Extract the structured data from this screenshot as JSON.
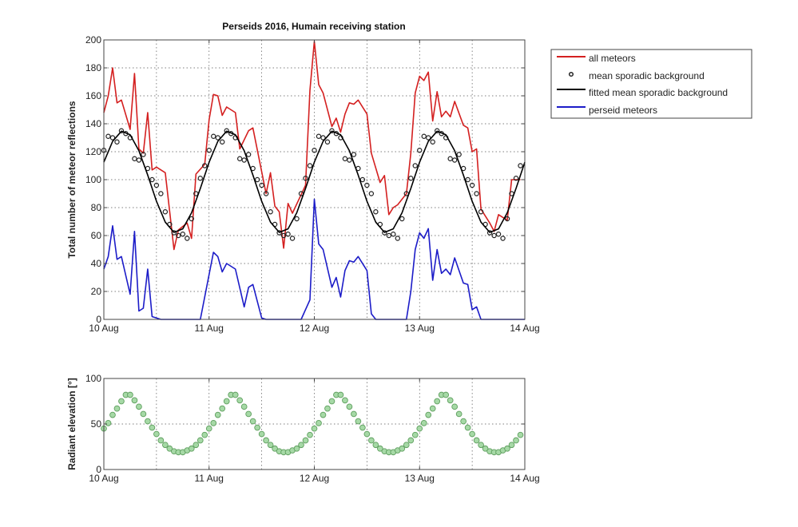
{
  "chart_data": [
    {
      "type": "line",
      "title": "Perseids 2016, Humain receiving station",
      "xlabel": "",
      "ylabel": "Total number of meteor reflections",
      "ylim": [
        0,
        200
      ],
      "xlim": [
        "10 Aug 00:00",
        "14 Aug 00:00"
      ],
      "yticks": [
        "0",
        "20",
        "40",
        "60",
        "80",
        "100",
        "120",
        "140",
        "160",
        "180",
        "200"
      ],
      "xticks": [
        "10 Aug",
        "11 Aug",
        "12 Aug",
        "13 Aug",
        "14 Aug"
      ],
      "grid": true,
      "legend_position": "outside-right",
      "series": [
        {
          "name": "all meteors",
          "style": "line",
          "color": "#d42020",
          "points": [
            [
              "10 Aug 00:00",
              148
            ],
            [
              "10 Aug 01:00",
              160
            ],
            [
              "10 Aug 02:00",
              180
            ],
            [
              "10 Aug 03:00",
              155
            ],
            [
              "10 Aug 04:00",
              157
            ],
            [
              "10 Aug 06:00",
              136
            ],
            [
              "10 Aug 07:00",
              176
            ],
            [
              "10 Aug 08:00",
              122
            ],
            [
              "10 Aug 09:00",
              119
            ],
            [
              "10 Aug 10:00",
              148
            ],
            [
              "10 Aug 11:00",
              107
            ],
            [
              "10 Aug 12:00",
              109
            ],
            [
              "10 Aug 14:00",
              105
            ],
            [
              "10 Aug 16:00",
              50
            ],
            [
              "10 Aug 17:00",
              64
            ],
            [
              "10 Aug 19:00",
              69
            ],
            [
              "10 Aug 20:00",
              58
            ],
            [
              "10 Aug 21:00",
              104
            ],
            [
              "10 Aug 23:00",
              111
            ],
            [
              "11 Aug 00:00",
              143
            ],
            [
              "11 Aug 01:00",
              161
            ],
            [
              "11 Aug 02:00",
              160
            ],
            [
              "11 Aug 03:00",
              146
            ],
            [
              "11 Aug 04:00",
              152
            ],
            [
              "11 Aug 06:00",
              148
            ],
            [
              "11 Aug 07:00",
              122
            ],
            [
              "11 Aug 09:00",
              135
            ],
            [
              "11 Aug 10:00",
              137
            ],
            [
              "11 Aug 13:00",
              90
            ],
            [
              "11 Aug 14:00",
              105
            ],
            [
              "11 Aug 15:00",
              81
            ],
            [
              "11 Aug 16:00",
              77
            ],
            [
              "11 Aug 17:00",
              51
            ],
            [
              "11 Aug 18:00",
              83
            ],
            [
              "11 Aug 19:00",
              76
            ],
            [
              "11 Aug 22:00",
              96
            ],
            [
              "11 Aug 23:00",
              164
            ],
            [
              "12 Aug 00:00",
              199
            ],
            [
              "12 Aug 01:00",
              168
            ],
            [
              "12 Aug 02:00",
              162
            ],
            [
              "12 Aug 04:00",
              138
            ],
            [
              "12 Aug 05:00",
              144
            ],
            [
              "12 Aug 06:00",
              134
            ],
            [
              "12 Aug 07:00",
              147
            ],
            [
              "12 Aug 08:00",
              155
            ],
            [
              "12 Aug 09:00",
              154
            ],
            [
              "12 Aug 10:00",
              157
            ],
            [
              "12 Aug 12:00",
              147
            ],
            [
              "12 Aug 13:00",
              119
            ],
            [
              "12 Aug 15:00",
              98
            ],
            [
              "12 Aug 16:00",
              103
            ],
            [
              "12 Aug 17:00",
              75
            ],
            [
              "12 Aug 18:00",
              80
            ],
            [
              "12 Aug 19:00",
              82
            ],
            [
              "12 Aug 21:00",
              90
            ],
            [
              "12 Aug 22:00",
              119
            ],
            [
              "12 Aug 23:00",
              162
            ],
            [
              "13 Aug 00:00",
              174
            ],
            [
              "13 Aug 01:00",
              171
            ],
            [
              "13 Aug 02:00",
              177
            ],
            [
              "13 Aug 03:00",
              142
            ],
            [
              "13 Aug 04:00",
              163
            ],
            [
              "13 Aug 05:00",
              145
            ],
            [
              "13 Aug 06:00",
              149
            ],
            [
              "13 Aug 07:00",
              145
            ],
            [
              "13 Aug 08:00",
              156
            ],
            [
              "13 Aug 10:00",
              139
            ],
            [
              "13 Aug 11:00",
              137
            ],
            [
              "13 Aug 12:00",
              120
            ],
            [
              "13 Aug 13:00",
              122
            ],
            [
              "13 Aug 14:00",
              79
            ],
            [
              "13 Aug 16:00",
              69
            ],
            [
              "13 Aug 17:00",
              63
            ],
            [
              "13 Aug 18:00",
              75
            ],
            [
              "13 Aug 20:00",
              71
            ],
            [
              "13 Aug 21:00",
              100
            ],
            [
              "13 Aug 23:00",
              100
            ]
          ]
        },
        {
          "name": "mean sporadic background",
          "style": "marker",
          "color": "#222222",
          "x_start": "10 Aug 00:00",
          "x_step": "1 h",
          "values": [
            121,
            131,
            130,
            127,
            135,
            133,
            130,
            115,
            114,
            118,
            108,
            100,
            96,
            90,
            77,
            68,
            62,
            60,
            61,
            58,
            72,
            90,
            101,
            110,
            121,
            131,
            130,
            127,
            135,
            133,
            130,
            115,
            114,
            118,
            108,
            100,
            96,
            90,
            77,
            68,
            62,
            60,
            61,
            58,
            72,
            90,
            101,
            110,
            121,
            131,
            130,
            127,
            135,
            133,
            130,
            115,
            114,
            118,
            108,
            100,
            96,
            90,
            77,
            68,
            62,
            60,
            61,
            58,
            72,
            90,
            101,
            110,
            121,
            131,
            130,
            127,
            135,
            133,
            130,
            115,
            114,
            118,
            108,
            100,
            96,
            90,
            77,
            68,
            62,
            60,
            61,
            58,
            72,
            90,
            101,
            110
          ]
        },
        {
          "name": "fitted mean sporadic background",
          "style": "line",
          "color": "#000000",
          "x_start": "10 Aug 00:00",
          "x_step": "2 h",
          "values": [
            112.5,
            127.4,
            134.7,
            132.2,
            120.7,
            103.3,
            84.5,
            69.6,
            62.3,
            64.8,
            76.3,
            93.7,
            112.5,
            127.4,
            134.7,
            132.2,
            120.7,
            103.3,
            84.5,
            69.6,
            62.3,
            64.8,
            76.3,
            93.7,
            112.5,
            127.4,
            134.7,
            132.2,
            120.7,
            103.3,
            84.5,
            69.6,
            62.3,
            64.8,
            76.3,
            93.7,
            112.5,
            127.4,
            134.7,
            132.2,
            120.7,
            103.3,
            84.5,
            69.6,
            62.3,
            64.8,
            76.3,
            93.7,
            112.5
          ]
        },
        {
          "name": "perseid meteors",
          "style": "line",
          "color": "#1c1cc8",
          "points": [
            [
              "10 Aug 00:00",
              36
            ],
            [
              "10 Aug 01:00",
              45
            ],
            [
              "10 Aug 02:00",
              67
            ],
            [
              "10 Aug 03:00",
              43
            ],
            [
              "10 Aug 04:00",
              45
            ],
            [
              "10 Aug 06:00",
              18
            ],
            [
              "10 Aug 07:00",
              63
            ],
            [
              "10 Aug 08:00",
              6
            ],
            [
              "10 Aug 09:00",
              8
            ],
            [
              "10 Aug 10:00",
              36
            ],
            [
              "10 Aug 11:00",
              2
            ],
            [
              "10 Aug 13:00",
              0
            ],
            [
              "10 Aug 22:00",
              0
            ],
            [
              "11 Aug 01:00",
              48
            ],
            [
              "11 Aug 02:00",
              45
            ],
            [
              "11 Aug 03:00",
              34
            ],
            [
              "11 Aug 04:00",
              40
            ],
            [
              "11 Aug 06:00",
              36
            ],
            [
              "11 Aug 08:00",
              9
            ],
            [
              "11 Aug 09:00",
              23
            ],
            [
              "11 Aug 10:00",
              25
            ],
            [
              "11 Aug 12:00",
              1
            ],
            [
              "11 Aug 13:00",
              0
            ],
            [
              "11 Aug 21:00",
              0
            ],
            [
              "11 Aug 23:00",
              14
            ],
            [
              "12 Aug 00:00",
              86
            ],
            [
              "12 Aug 01:00",
              54
            ],
            [
              "12 Aug 02:00",
              50
            ],
            [
              "12 Aug 04:00",
              23
            ],
            [
              "12 Aug 05:00",
              30
            ],
            [
              "12 Aug 06:00",
              16
            ],
            [
              "12 Aug 07:00",
              35
            ],
            [
              "12 Aug 08:00",
              42
            ],
            [
              "12 Aug 09:00",
              41
            ],
            [
              "12 Aug 10:00",
              45
            ],
            [
              "12 Aug 12:00",
              35
            ],
            [
              "12 Aug 13:00",
              4
            ],
            [
              "12 Aug 14:00",
              0
            ],
            [
              "12 Aug 21:00",
              0
            ],
            [
              "12 Aug 22:00",
              20
            ],
            [
              "12 Aug 23:00",
              50
            ],
            [
              "13 Aug 00:00",
              62
            ],
            [
              "13 Aug 01:00",
              58
            ],
            [
              "13 Aug 02:00",
              65
            ],
            [
              "13 Aug 03:00",
              28
            ],
            [
              "13 Aug 04:00",
              50
            ],
            [
              "13 Aug 05:00",
              33
            ],
            [
              "13 Aug 06:00",
              36
            ],
            [
              "13 Aug 07:00",
              32
            ],
            [
              "13 Aug 08:00",
              44
            ],
            [
              "13 Aug 10:00",
              26
            ],
            [
              "13 Aug 11:00",
              25
            ],
            [
              "13 Aug 12:00",
              7
            ],
            [
              "13 Aug 13:00",
              9
            ],
            [
              "13 Aug 14:00",
              0
            ],
            [
              "14 Aug 00:00",
              0
            ]
          ]
        }
      ]
    },
    {
      "type": "scatter",
      "title": "",
      "xlabel": "",
      "ylabel": "Radiant elevation [°]",
      "ylim": [
        0,
        100
      ],
      "xlim": [
        "10 Aug 00:00",
        "14 Aug 00:00"
      ],
      "yticks": [
        "0",
        "50",
        "100"
      ],
      "xticks": [
        "10 Aug",
        "11 Aug",
        "12 Aug",
        "13 Aug",
        "14 Aug"
      ],
      "grid": true,
      "series": [
        {
          "style": "marker",
          "color": "#a6d9a6",
          "edge_color": "#5f9f5f",
          "x_start": "10 Aug 00:00",
          "x_step": "1 h",
          "values": [
            45,
            51,
            60,
            67,
            75,
            82,
            82,
            76,
            69,
            61,
            53,
            46,
            39,
            32,
            27,
            23,
            20,
            19,
            19,
            21,
            23,
            27,
            32,
            38,
            45,
            51,
            60,
            67,
            75,
            82,
            82,
            76,
            69,
            61,
            53,
            46,
            39,
            32,
            27,
            23,
            20,
            19,
            19,
            21,
            23,
            27,
            32,
            38,
            45,
            51,
            60,
            67,
            75,
            82,
            82,
            76,
            69,
            61,
            53,
            46,
            39,
            32,
            27,
            23,
            20,
            19,
            19,
            21,
            23,
            27,
            32,
            38,
            45,
            51,
            60,
            67,
            75,
            82,
            82,
            76,
            69,
            61,
            53,
            46,
            39,
            32,
            27,
            23,
            20,
            19,
            19,
            21,
            23,
            27,
            32,
            38
          ]
        }
      ]
    }
  ]
}
